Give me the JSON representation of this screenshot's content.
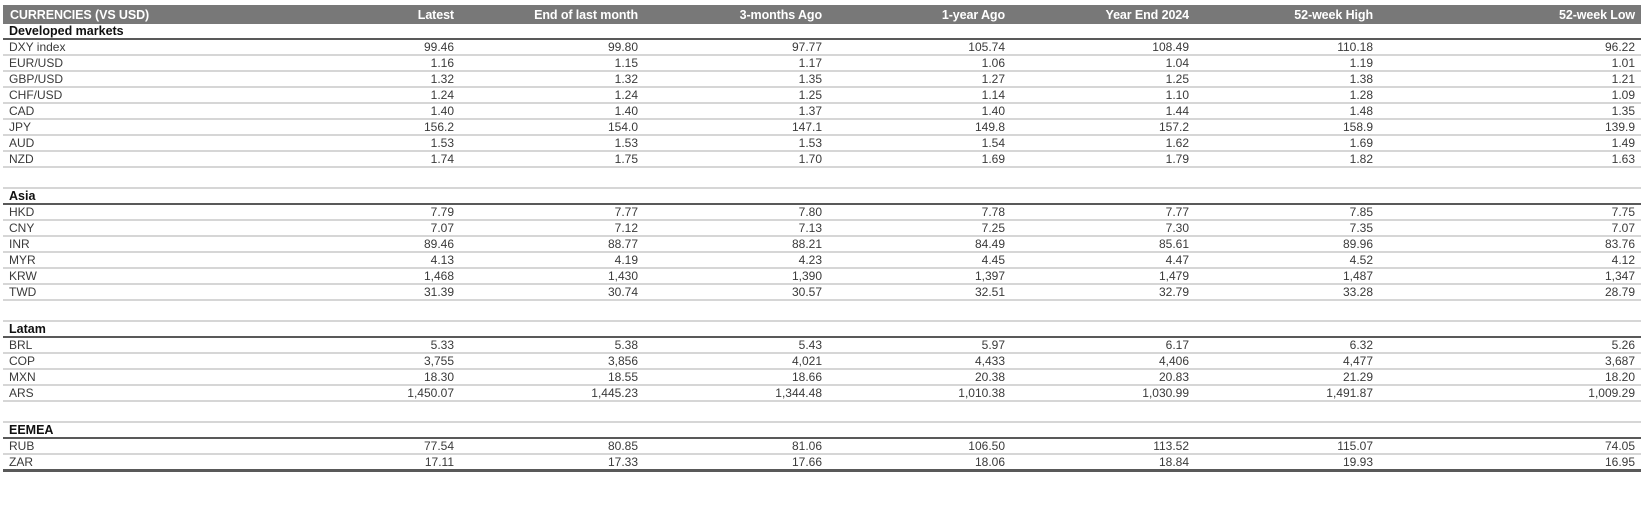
{
  "colors": {
    "header_bg": "#787878",
    "header_text": "#ffffff",
    "section_rule": "#595959",
    "row_rule": "#d6d6d6",
    "body_text": "#3a3a3a"
  },
  "chart_data": {
    "type": "table",
    "title": "CURRENCIES (VS USD)",
    "columns": [
      "CURRENCIES (VS USD)",
      "Latest",
      "End of last month",
      "3-months Ago",
      "1-year Ago",
      "Year End 2024",
      "52-week High",
      "52-week Low"
    ],
    "sections": [
      {
        "name": "Developed markets",
        "rows": [
          {
            "label": "DXY index",
            "values": [
              "99.46",
              "99.80",
              "97.77",
              "105.74",
              "108.49",
              "110.18",
              "96.22"
            ]
          },
          {
            "label": "EUR/USD",
            "values": [
              "1.16",
              "1.15",
              "1.17",
              "1.06",
              "1.04",
              "1.19",
              "1.01"
            ]
          },
          {
            "label": "GBP/USD",
            "values": [
              "1.32",
              "1.32",
              "1.35",
              "1.27",
              "1.25",
              "1.38",
              "1.21"
            ]
          },
          {
            "label": "CHF/USD",
            "values": [
              "1.24",
              "1.24",
              "1.25",
              "1.14",
              "1.10",
              "1.28",
              "1.09"
            ]
          },
          {
            "label": "CAD",
            "values": [
              "1.40",
              "1.40",
              "1.37",
              "1.40",
              "1.44",
              "1.48",
              "1.35"
            ]
          },
          {
            "label": "JPY",
            "values": [
              "156.2",
              "154.0",
              "147.1",
              "149.8",
              "157.2",
              "158.9",
              "139.9"
            ]
          },
          {
            "label": "AUD",
            "values": [
              "1.53",
              "1.53",
              "1.53",
              "1.54",
              "1.62",
              "1.69",
              "1.49"
            ]
          },
          {
            "label": "NZD",
            "values": [
              "1.74",
              "1.75",
              "1.70",
              "1.69",
              "1.79",
              "1.82",
              "1.63"
            ]
          }
        ]
      },
      {
        "name": "Asia",
        "rows": [
          {
            "label": "HKD",
            "values": [
              "7.79",
              "7.77",
              "7.80",
              "7.78",
              "7.77",
              "7.85",
              "7.75"
            ]
          },
          {
            "label": "CNY",
            "values": [
              "7.07",
              "7.12",
              "7.13",
              "7.25",
              "7.30",
              "7.35",
              "7.07"
            ]
          },
          {
            "label": "INR",
            "values": [
              "89.46",
              "88.77",
              "88.21",
              "84.49",
              "85.61",
              "89.96",
              "83.76"
            ]
          },
          {
            "label": "MYR",
            "values": [
              "4.13",
              "4.19",
              "4.23",
              "4.45",
              "4.47",
              "4.52",
              "4.12"
            ]
          },
          {
            "label": "KRW",
            "values": [
              "1,468",
              "1,430",
              "1,390",
              "1,397",
              "1,479",
              "1,487",
              "1,347"
            ]
          },
          {
            "label": "TWD",
            "values": [
              "31.39",
              "30.74",
              "30.57",
              "32.51",
              "32.79",
              "33.28",
              "28.79"
            ]
          }
        ]
      },
      {
        "name": "Latam",
        "rows": [
          {
            "label": "BRL",
            "values": [
              "5.33",
              "5.38",
              "5.43",
              "5.97",
              "6.17",
              "6.32",
              "5.26"
            ]
          },
          {
            "label": "COP",
            "values": [
              "3,755",
              "3,856",
              "4,021",
              "4,433",
              "4,406",
              "4,477",
              "3,687"
            ]
          },
          {
            "label": "MXN",
            "values": [
              "18.30",
              "18.55",
              "18.66",
              "20.38",
              "20.83",
              "21.29",
              "18.20"
            ]
          },
          {
            "label": "ARS",
            "values": [
              "1,450.07",
              "1,445.23",
              "1,344.48",
              "1,010.38",
              "1,030.99",
              "1,491.87",
              "1,009.29"
            ]
          }
        ]
      },
      {
        "name": "EEMEA",
        "rows": [
          {
            "label": "RUB",
            "values": [
              "77.54",
              "80.85",
              "81.06",
              "106.50",
              "113.52",
              "115.07",
              "74.05"
            ]
          },
          {
            "label": "ZAR",
            "values": [
              "17.11",
              "17.33",
              "17.66",
              "18.06",
              "18.84",
              "19.93",
              "16.95"
            ]
          }
        ]
      }
    ]
  }
}
